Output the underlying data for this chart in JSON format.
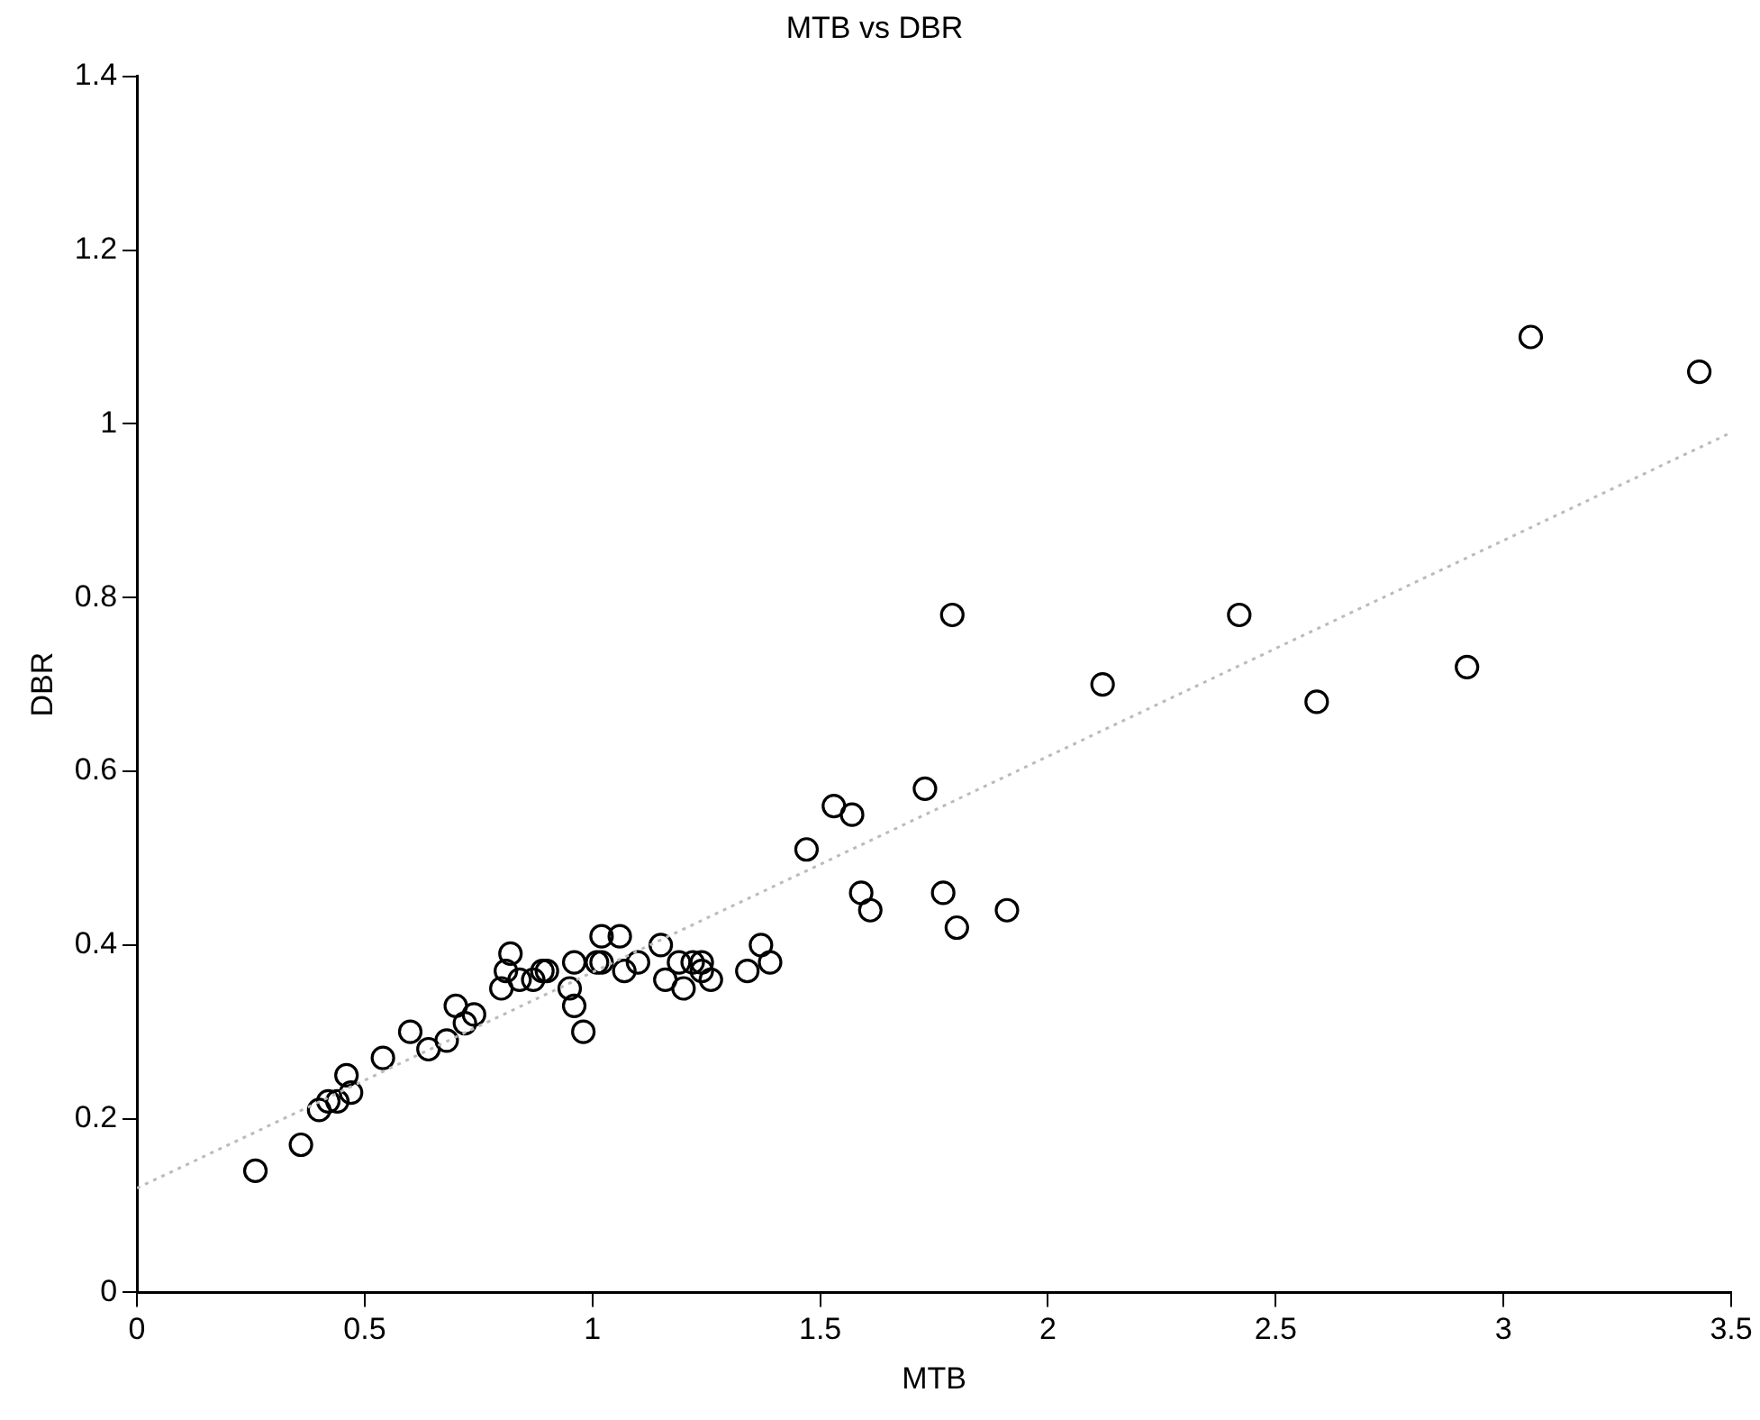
{
  "chart_data": {
    "type": "scatter",
    "title": "MTB vs DBR",
    "xlabel": "MTB",
    "ylabel": "DBR",
    "xlim": [
      0,
      3.5
    ],
    "xticks": [
      0,
      0.5,
      1,
      1.5,
      2,
      2.5,
      3,
      3.5
    ],
    "ylim": [
      0,
      1.4
    ],
    "yticks": [
      0,
      0.2,
      0.4,
      0.6,
      0.8,
      1,
      1.2,
      1.4
    ],
    "grid": false,
    "legend": false,
    "marker": "circle",
    "series": [
      {
        "color": "#000000",
        "x": [
          0.26,
          0.36,
          0.4,
          0.42,
          0.44,
          0.46,
          0.47,
          0.54,
          0.6,
          0.64,
          0.68,
          0.7,
          0.72,
          0.74,
          0.8,
          0.81,
          0.82,
          0.84,
          0.87,
          0.89,
          0.9,
          0.95,
          0.96,
          0.96,
          0.98,
          1.01,
          1.02,
          1.02,
          1.06,
          1.07,
          1.1,
          1.15,
          1.16,
          1.2,
          1.19,
          1.22,
          1.24,
          1.24,
          1.26,
          1.34,
          1.37,
          1.39,
          1.47,
          1.53,
          1.57,
          1.73,
          1.59,
          1.61,
          1.77,
          1.8,
          1.91,
          1.79,
          2.12,
          2.42,
          2.59,
          2.92,
          3.06,
          3.43
        ],
        "values": [
          0.14,
          0.17,
          0.21,
          0.22,
          0.22,
          0.25,
          0.23,
          0.27,
          0.3,
          0.28,
          0.29,
          0.33,
          0.31,
          0.32,
          0.35,
          0.37,
          0.39,
          0.36,
          0.36,
          0.37,
          0.37,
          0.35,
          0.38,
          0.33,
          0.3,
          0.38,
          0.38,
          0.41,
          0.41,
          0.37,
          0.38,
          0.4,
          0.36,
          0.35,
          0.38,
          0.38,
          0.37,
          0.38,
          0.36,
          0.37,
          0.4,
          0.38,
          0.51,
          0.56,
          0.55,
          0.58,
          0.46,
          0.44,
          0.46,
          0.42,
          0.44,
          0.78,
          0.7,
          0.78,
          0.68,
          0.72,
          1.1,
          1.06
        ]
      },
      {
        "type": "line",
        "color": "#bbbbbb",
        "line_style": "dotted",
        "marker": "none",
        "x": [
          0,
          3.5
        ],
        "values": [
          0.12,
          0.99
        ]
      }
    ]
  }
}
